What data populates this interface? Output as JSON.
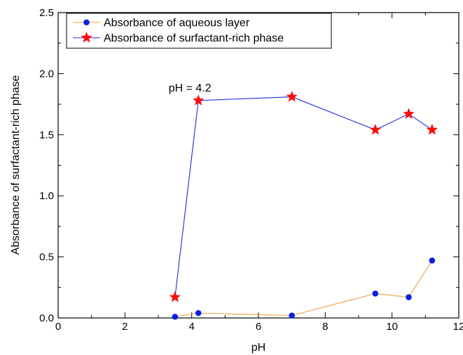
{
  "chart_data": {
    "type": "line",
    "title": "",
    "xlabel": "pH",
    "ylabel": "Absorbance of surfactant-rich phase",
    "xlim": [
      0,
      12
    ],
    "ylim": [
      0,
      2.5
    ],
    "x_ticks": [
      0,
      2,
      4,
      6,
      8,
      10,
      12
    ],
    "x_tick_labels": [
      "0",
      "2",
      "4",
      "6",
      "8",
      "10",
      "12"
    ],
    "y_ticks": [
      0,
      0.5,
      1.0,
      1.5,
      2.0,
      2.5
    ],
    "y_tick_labels": [
      "0.0",
      "0.5",
      "1.0",
      "1.5",
      "2.0",
      "2.5"
    ],
    "grid": false,
    "legend_position": "top-left",
    "series": [
      {
        "name": "Absorbance of aqueous layer",
        "marker": "circle",
        "line_color": "#f0a040",
        "marker_color": "#0a1ee6",
        "x": [
          3.5,
          4.2,
          7.0,
          9.5,
          10.5,
          11.2
        ],
        "y": [
          0.01,
          0.04,
          0.02,
          0.2,
          0.17,
          0.47
        ]
      },
      {
        "name": "Absorbance of surfactant-rich phase",
        "marker": "star",
        "line_color": "#1a2ad6",
        "marker_color": "#ff0a0a",
        "x": [
          3.5,
          4.2,
          7.0,
          9.5,
          10.5,
          11.2
        ],
        "y": [
          0.17,
          1.78,
          1.81,
          1.54,
          1.67,
          1.54
        ]
      }
    ],
    "annotations": [
      {
        "text": "pH = 4.2",
        "x": 4.2,
        "y": 1.78
      }
    ]
  }
}
